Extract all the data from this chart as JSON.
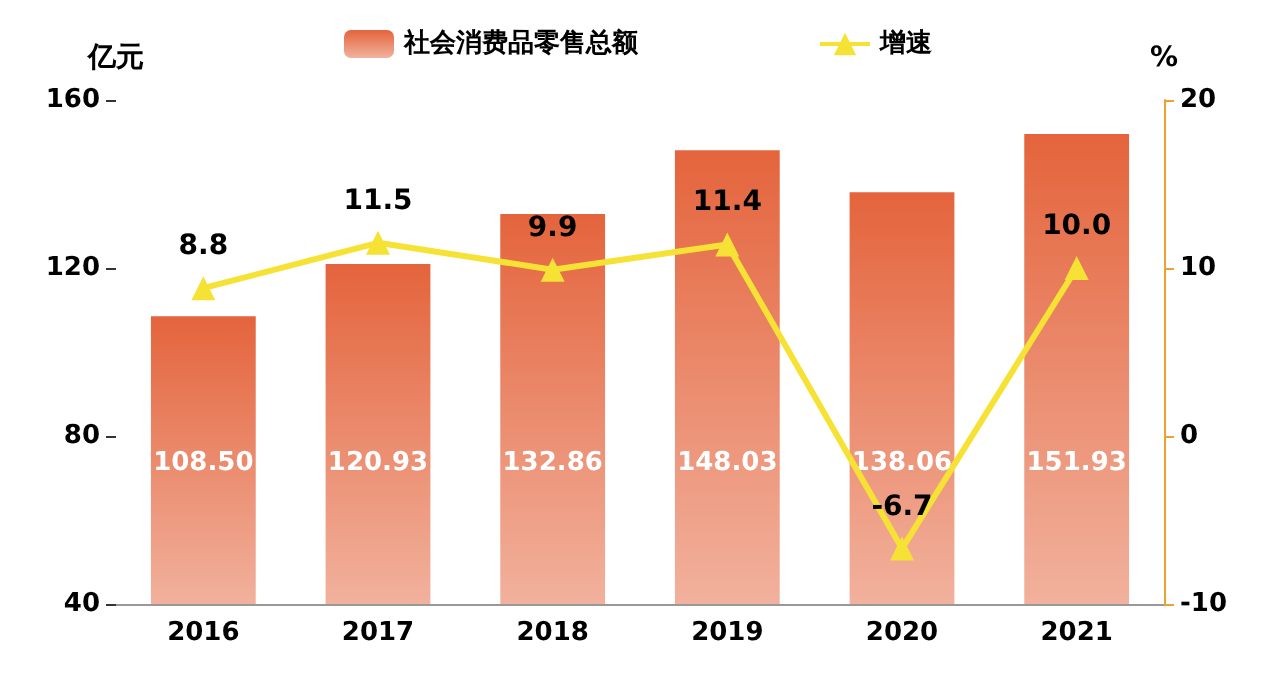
{
  "chart_data": {
    "type": "bar",
    "ylabel": "亿元",
    "y2label": "%",
    "categories": [
      "2016",
      "2017",
      "2018",
      "2019",
      "2020",
      "2021"
    ],
    "series": [
      {
        "name": "社会消费品零售总额",
        "color": "#e4643c",
        "values": [
          108.5,
          120.93,
          132.86,
          148.03,
          138.06,
          151.93
        ],
        "value_labels": [
          "108.50",
          "120.93",
          "132.86",
          "148.03",
          "138.06",
          "151.93"
        ]
      },
      {
        "name": "增速",
        "type": "line",
        "axis": "y2",
        "color": "#f5e234",
        "values": [
          8.8,
          11.5,
          9.9,
          11.4,
          -6.7,
          10.0
        ],
        "value_labels": [
          "8.8",
          "11.5",
          "9.9",
          "11.4",
          "-6.7",
          "10.0"
        ]
      }
    ],
    "ylim": [
      40,
      160
    ],
    "yticks": [
      40,
      80,
      120,
      160
    ],
    "y2lim": [
      -10,
      20
    ],
    "y2ticks": [
      -10,
      0,
      10,
      20
    ],
    "grid": false,
    "legend": "top",
    "marker": "triangle",
    "line_style": "solid"
  }
}
